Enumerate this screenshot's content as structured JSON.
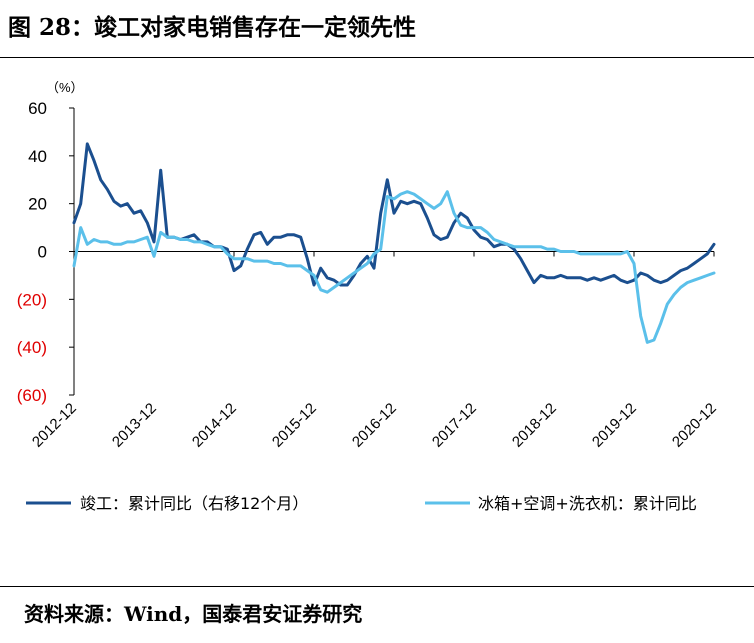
{
  "title": "图 28：竣工对家电销售存在一定领先性",
  "source": "资料来源：Wind，国泰君安证券研究",
  "colors": {
    "dark_blue": "#1b4f8f",
    "light_blue": "#5bc0ea",
    "negative_label": "#e00000",
    "axis": "#000000"
  },
  "chart_data": {
    "type": "line",
    "title": "",
    "xlabel": "",
    "ylabel": "",
    "unit_label": "（%）",
    "ylim": [
      -60,
      60
    ],
    "yticks": [
      60,
      40,
      20,
      0,
      -20,
      -40,
      -60
    ],
    "ytick_labels": [
      "60",
      "40",
      "20",
      "0",
      "(20)",
      "(40)",
      "(60)"
    ],
    "x_tick_labels": [
      "2012-12",
      "2013-12",
      "2014-12",
      "2015-12",
      "2016-12",
      "2017-12",
      "2018-12",
      "2019-12",
      "2020-12"
    ],
    "x_start": "2012-12",
    "grid": false,
    "legend_position": "bottom",
    "series": [
      {
        "name": "竣工：累计同比（右移12个月）",
        "color": "#1b4f8f",
        "points": [
          [
            "2012-12",
            12
          ],
          [
            "2013-01",
            20
          ],
          [
            "2013-02",
            45
          ],
          [
            "2013-03",
            38
          ],
          [
            "2013-04",
            30
          ],
          [
            "2013-05",
            26
          ],
          [
            "2013-06",
            21
          ],
          [
            "2013-07",
            19
          ],
          [
            "2013-08",
            20
          ],
          [
            "2013-09",
            16
          ],
          [
            "2013-10",
            17
          ],
          [
            "2013-11",
            12
          ],
          [
            "2013-12",
            4
          ],
          [
            "2014-01",
            34
          ],
          [
            "2014-02",
            6
          ],
          [
            "2014-03",
            6
          ],
          [
            "2014-04",
            5
          ],
          [
            "2014-05",
            6
          ],
          [
            "2014-06",
            7
          ],
          [
            "2014-07",
            4
          ],
          [
            "2014-08",
            4
          ],
          [
            "2014-09",
            2
          ],
          [
            "2014-10",
            2
          ],
          [
            "2014-11",
            1
          ],
          [
            "2014-12",
            -8
          ],
          [
            "2015-01",
            -6
          ],
          [
            "2015-02",
            1
          ],
          [
            "2015-03",
            7
          ],
          [
            "2015-04",
            8
          ],
          [
            "2015-05",
            3
          ],
          [
            "2015-06",
            6
          ],
          [
            "2015-07",
            6
          ],
          [
            "2015-08",
            7
          ],
          [
            "2015-09",
            7
          ],
          [
            "2015-10",
            6
          ],
          [
            "2015-11",
            -3
          ],
          [
            "2015-12",
            -14
          ],
          [
            "2016-01",
            -7
          ],
          [
            "2016-02",
            -11
          ],
          [
            "2016-03",
            -12
          ],
          [
            "2016-04",
            -14
          ],
          [
            "2016-05",
            -14
          ],
          [
            "2016-06",
            -10
          ],
          [
            "2016-07",
            -5
          ],
          [
            "2016-08",
            -2
          ],
          [
            "2016-09",
            -7
          ],
          [
            "2016-10",
            16
          ],
          [
            "2016-11",
            30
          ],
          [
            "2016-12",
            16
          ],
          [
            "2017-01",
            21
          ],
          [
            "2017-02",
            20
          ],
          [
            "2017-03",
            21
          ],
          [
            "2017-04",
            20
          ],
          [
            "2017-05",
            14
          ],
          [
            "2017-06",
            7
          ],
          [
            "2017-07",
            5
          ],
          [
            "2017-08",
            6
          ],
          [
            "2017-09",
            12
          ],
          [
            "2017-10",
            16
          ],
          [
            "2017-11",
            14
          ],
          [
            "2017-12",
            9
          ],
          [
            "2018-01",
            6
          ],
          [
            "2018-02",
            5
          ],
          [
            "2018-03",
            2
          ],
          [
            "2018-04",
            3
          ],
          [
            "2018-05",
            3
          ],
          [
            "2018-06",
            1
          ],
          [
            "2018-07",
            -3
          ],
          [
            "2018-08",
            -8
          ],
          [
            "2018-09",
            -13
          ],
          [
            "2018-10",
            -10
          ],
          [
            "2018-11",
            -11
          ],
          [
            "2018-12",
            -11
          ],
          [
            "2019-01",
            -10
          ],
          [
            "2019-02",
            -11
          ],
          [
            "2019-03",
            -11
          ],
          [
            "2019-04",
            -11
          ],
          [
            "2019-05",
            -12
          ],
          [
            "2019-06",
            -11
          ],
          [
            "2019-07",
            -12
          ],
          [
            "2019-08",
            -11
          ],
          [
            "2019-09",
            -10
          ],
          [
            "2019-10",
            -12
          ],
          [
            "2019-11",
            -13
          ],
          [
            "2019-12",
            -12
          ],
          [
            "2020-01",
            -9
          ],
          [
            "2020-02",
            -10
          ],
          [
            "2020-03",
            -12
          ],
          [
            "2020-04",
            -13
          ],
          [
            "2020-05",
            -12
          ],
          [
            "2020-06",
            -10
          ],
          [
            "2020-07",
            -8
          ],
          [
            "2020-08",
            -7
          ],
          [
            "2020-09",
            -5
          ],
          [
            "2020-10",
            -3
          ],
          [
            "2020-11",
            -1
          ],
          [
            "2020-12",
            3
          ]
        ]
      },
      {
        "name": "冰箱+空调+洗衣机：累计同比",
        "color": "#5bc0ea",
        "points": [
          [
            "2012-12",
            -6
          ],
          [
            "2013-01",
            10
          ],
          [
            "2013-02",
            3
          ],
          [
            "2013-03",
            5
          ],
          [
            "2013-04",
            4
          ],
          [
            "2013-05",
            4
          ],
          [
            "2013-06",
            3
          ],
          [
            "2013-07",
            3
          ],
          [
            "2013-08",
            4
          ],
          [
            "2013-09",
            4
          ],
          [
            "2013-10",
            5
          ],
          [
            "2013-11",
            6
          ],
          [
            "2013-12",
            -2
          ],
          [
            "2014-01",
            8
          ],
          [
            "2014-02",
            6
          ],
          [
            "2014-03",
            6
          ],
          [
            "2014-04",
            5
          ],
          [
            "2014-05",
            5
          ],
          [
            "2014-06",
            4
          ],
          [
            "2014-07",
            4
          ],
          [
            "2014-08",
            3
          ],
          [
            "2014-09",
            2
          ],
          [
            "2014-10",
            2
          ],
          [
            "2014-11",
            -1
          ],
          [
            "2014-12",
            -3
          ],
          [
            "2015-01",
            -3
          ],
          [
            "2015-02",
            -3
          ],
          [
            "2015-03",
            -4
          ],
          [
            "2015-04",
            -4
          ],
          [
            "2015-05",
            -4
          ],
          [
            "2015-06",
            -5
          ],
          [
            "2015-07",
            -5
          ],
          [
            "2015-08",
            -6
          ],
          [
            "2015-09",
            -6
          ],
          [
            "2015-10",
            -6
          ],
          [
            "2015-11",
            -8
          ],
          [
            "2015-12",
            -10
          ],
          [
            "2016-01",
            -16
          ],
          [
            "2016-02",
            -17
          ],
          [
            "2016-03",
            -15
          ],
          [
            "2016-04",
            -13
          ],
          [
            "2016-05",
            -11
          ],
          [
            "2016-06",
            -9
          ],
          [
            "2016-07",
            -7
          ],
          [
            "2016-08",
            -5
          ],
          [
            "2016-09",
            -1
          ],
          [
            "2016-10",
            1
          ],
          [
            "2016-11",
            23
          ],
          [
            "2016-12",
            22
          ],
          [
            "2017-01",
            24
          ],
          [
            "2017-02",
            25
          ],
          [
            "2017-03",
            24
          ],
          [
            "2017-04",
            22
          ],
          [
            "2017-05",
            20
          ],
          [
            "2017-06",
            18
          ],
          [
            "2017-07",
            20
          ],
          [
            "2017-08",
            25
          ],
          [
            "2017-09",
            16
          ],
          [
            "2017-10",
            11
          ],
          [
            "2017-11",
            10
          ],
          [
            "2017-12",
            10
          ],
          [
            "2018-01",
            10
          ],
          [
            "2018-02",
            8
          ],
          [
            "2018-03",
            5
          ],
          [
            "2018-04",
            4
          ],
          [
            "2018-05",
            3
          ],
          [
            "2018-06",
            2
          ],
          [
            "2018-07",
            2
          ],
          [
            "2018-08",
            2
          ],
          [
            "2018-09",
            2
          ],
          [
            "2018-10",
            2
          ],
          [
            "2018-11",
            1
          ],
          [
            "2018-12",
            1
          ],
          [
            "2019-01",
            0
          ],
          [
            "2019-02",
            0
          ],
          [
            "2019-03",
            0
          ],
          [
            "2019-04",
            -1
          ],
          [
            "2019-05",
            -1
          ],
          [
            "2019-06",
            -1
          ],
          [
            "2019-07",
            -1
          ],
          [
            "2019-08",
            -1
          ],
          [
            "2019-09",
            -1
          ],
          [
            "2019-10",
            -1
          ],
          [
            "2019-11",
            0
          ],
          [
            "2019-12",
            -5
          ],
          [
            "2020-01",
            -27
          ],
          [
            "2020-02",
            -38
          ],
          [
            "2020-03",
            -37
          ],
          [
            "2020-04",
            -30
          ],
          [
            "2020-05",
            -22
          ],
          [
            "2020-06",
            -18
          ],
          [
            "2020-07",
            -15
          ],
          [
            "2020-08",
            -13
          ],
          [
            "2020-09",
            -12
          ],
          [
            "2020-10",
            -11
          ],
          [
            "2020-11",
            -10
          ],
          [
            "2020-12",
            -9
          ]
        ]
      }
    ]
  }
}
